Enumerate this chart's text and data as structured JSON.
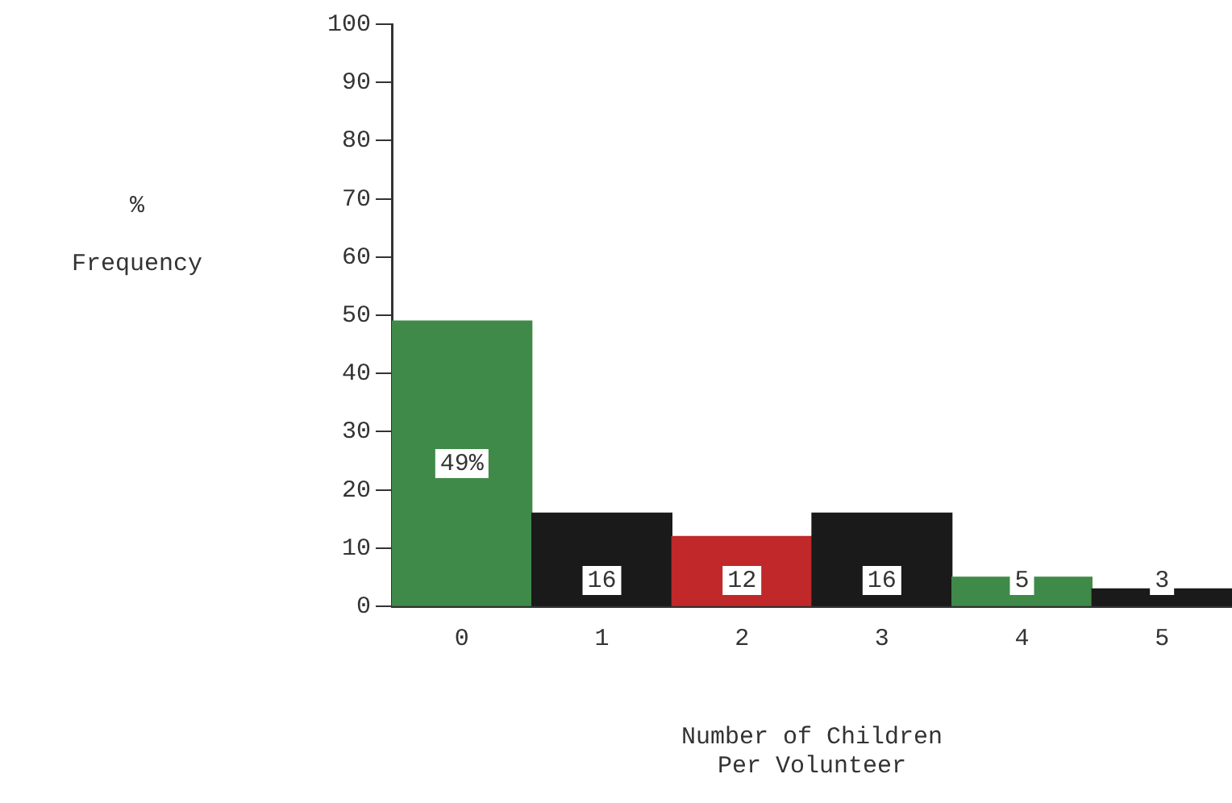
{
  "chart_data": {
    "type": "bar",
    "xlabel": "Number of Children\nPer Volunteer",
    "ylabel": "%\nFrequency",
    "categories": [
      "0",
      "1",
      "2",
      "3",
      "4",
      "5"
    ],
    "values": [
      49,
      16,
      12,
      16,
      5,
      3
    ],
    "colors": [
      "#3f8a48",
      "#1a1a1a",
      "#c0282a",
      "#1a1a1a",
      "#3f8a48",
      "#1a1a1a"
    ],
    "value_labels": [
      "49%",
      "16",
      "12",
      "16",
      "5",
      "3"
    ],
    "ylim": [
      0,
      100
    ],
    "yticks": [
      0,
      10,
      20,
      30,
      40,
      50,
      60,
      70,
      80,
      90,
      100
    ],
    "grid": false,
    "legend": false
  }
}
